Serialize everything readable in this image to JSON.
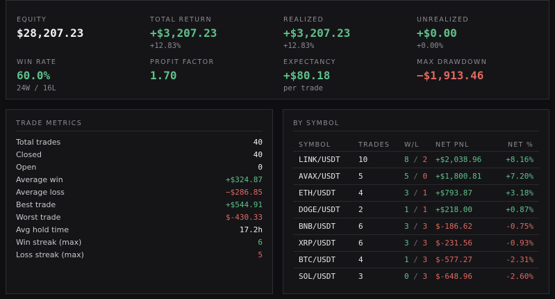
{
  "stats": [
    {
      "label": "EQUITY",
      "value": "$28,207.23",
      "sub": "",
      "tone": "white"
    },
    {
      "label": "TOTAL RETURN",
      "value": "+$3,207.23",
      "sub": "+12.83%",
      "tone": "green"
    },
    {
      "label": "REALIZED",
      "value": "+$3,207.23",
      "sub": "+12.83%",
      "tone": "green"
    },
    {
      "label": "UNREALIZED",
      "value": "+$0.00",
      "sub": "+0.00%",
      "tone": "green"
    },
    {
      "label": "WIN RATE",
      "value": "60.0%",
      "sub": "24W / 16L",
      "tone": "green"
    },
    {
      "label": "PROFIT FACTOR",
      "value": "1.70",
      "sub": "",
      "tone": "green"
    },
    {
      "label": "EXPECTANCY",
      "value": "+$80.18",
      "sub": "per trade",
      "tone": "green"
    },
    {
      "label": "MAX DRAWDOWN",
      "value": "−$1,913.46",
      "sub": "",
      "tone": "red"
    }
  ],
  "trade_metrics": {
    "title": "TRADE METRICS",
    "rows": [
      {
        "label": "Total trades",
        "value": "40",
        "tone": "white"
      },
      {
        "label": "Closed",
        "value": "40",
        "tone": "white"
      },
      {
        "label": "Open",
        "value": "0",
        "tone": "white"
      },
      {
        "label": "Average win",
        "value": "+$324.87",
        "tone": "green"
      },
      {
        "label": "Average loss",
        "value": "−$286.85",
        "tone": "red"
      },
      {
        "label": "Best trade",
        "value": "+$544.91",
        "tone": "green"
      },
      {
        "label": "Worst trade",
        "value": "$-430.33",
        "tone": "red"
      },
      {
        "label": "Avg hold time",
        "value": "17.2h",
        "tone": "white"
      },
      {
        "label": "Win streak (max)",
        "value": "6",
        "tone": "green"
      },
      {
        "label": "Loss streak (max)",
        "value": "5",
        "tone": "red"
      }
    ]
  },
  "by_symbol": {
    "title": "BY SYMBOL",
    "headers": {
      "symbol": "SYMBOL",
      "trades": "TRADES",
      "wl": "W/L",
      "pnl": "NET PNL",
      "pct": "NET %"
    },
    "rows": [
      {
        "symbol": "LINK/USDT",
        "trades": "10",
        "wins": "8",
        "losses": "2",
        "pnl": "+$2,038.96",
        "pct": "+8.16%",
        "tone": "green"
      },
      {
        "symbol": "AVAX/USDT",
        "trades": "5",
        "wins": "5",
        "losses": "0",
        "pnl": "+$1,800.81",
        "pct": "+7.20%",
        "tone": "green"
      },
      {
        "symbol": "ETH/USDT",
        "trades": "4",
        "wins": "3",
        "losses": "1",
        "pnl": "+$793.87",
        "pct": "+3.18%",
        "tone": "green"
      },
      {
        "symbol": "DOGE/USDT",
        "trades": "2",
        "wins": "1",
        "losses": "1",
        "pnl": "+$218.00",
        "pct": "+0.87%",
        "tone": "green"
      },
      {
        "symbol": "BNB/USDT",
        "trades": "6",
        "wins": "3",
        "losses": "3",
        "pnl": "$-186.62",
        "pct": "-0.75%",
        "tone": "red"
      },
      {
        "symbol": "XRP/USDT",
        "trades": "6",
        "wins": "3",
        "losses": "3",
        "pnl": "$-231.56",
        "pct": "-0.93%",
        "tone": "red"
      },
      {
        "symbol": "BTC/USDT",
        "trades": "4",
        "wins": "1",
        "losses": "3",
        "pnl": "$-577.27",
        "pct": "-2.31%",
        "tone": "red"
      },
      {
        "symbol": "SOL/USDT",
        "trades": "3",
        "wins": "0",
        "losses": "3",
        "pnl": "$-648.96",
        "pct": "-2.60%",
        "tone": "red"
      }
    ]
  },
  "colors": {
    "positive": "#5fc08a",
    "negative": "#e0685f",
    "panel": "#151518",
    "border": "#2e2e33"
  }
}
